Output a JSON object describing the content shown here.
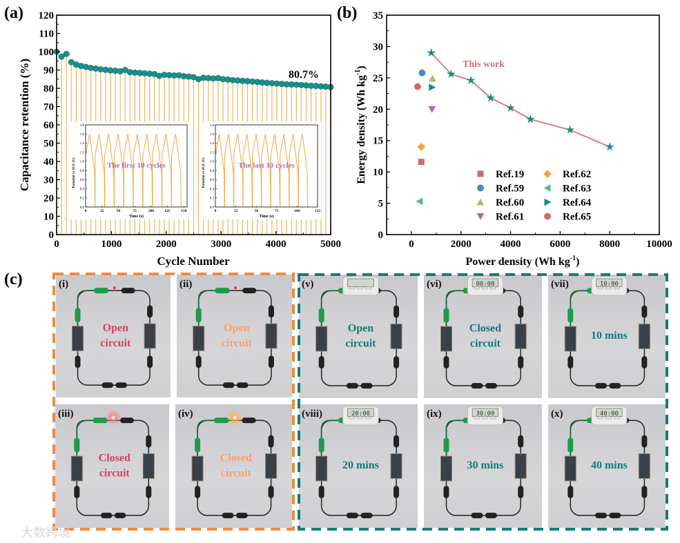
{
  "panels": {
    "a": "(a)",
    "b": "(b)",
    "c": "(c)"
  },
  "chart_data": [
    {
      "id": "a",
      "type": "scatter",
      "xlabel": "Cycle Number",
      "ylabel": "Capacitance retention (%)",
      "xlim": [
        0,
        5000
      ],
      "ylim": [
        0,
        120
      ],
      "xticks": [
        0,
        1000,
        2000,
        3000,
        4000,
        5000
      ],
      "yticks": [
        0,
        10,
        20,
        30,
        40,
        50,
        60,
        70,
        80,
        90,
        100,
        110,
        120
      ],
      "annotation": "80.7%",
      "marker_color": "#1a9089",
      "drop_line_color": "#f2b45a",
      "values": [
        100,
        97.3,
        98.8,
        94.3,
        93.0,
        92.2,
        91.7,
        91.2,
        90.8,
        90.4,
        90.1,
        89.8,
        89.6,
        89.3,
        90.0,
        88.8,
        88.6,
        88.4,
        88.2,
        88.0,
        87.8,
        86.8,
        87.4,
        87.2,
        87.0,
        87.1,
        86.6,
        86.4,
        86.1,
        85.0,
        85.8,
        85.6,
        85.4,
        85.6,
        85.0,
        84.8,
        84.5,
        84.3,
        84.1,
        83.9,
        83.7,
        83.5,
        83.2,
        83.0,
        82.8,
        82.6,
        82.4,
        82.2,
        82.1,
        82.0,
        81.8,
        81.6,
        81.4,
        81.3,
        81.1,
        80.9,
        80.7
      ],
      "insets": [
        {
          "label": "The first 10 cycles",
          "xlabel": "Time (s)",
          "ylabel": "Potential vs SCE (V)",
          "xlim": [
            0,
            155
          ],
          "ylim": [
            0,
            1.8
          ],
          "xticks": [
            0,
            25,
            50,
            75,
            100,
            125,
            150
          ],
          "yticks": [
            "0.0",
            "0.2",
            "0.4",
            "0.6",
            "0.8",
            "1.0",
            "1.2",
            "1.4",
            "1.6",
            "1.8"
          ],
          "cycles": 10,
          "period_s": 14.6,
          "vmax": 1.6
        },
        {
          "label": "The last 10 cycles",
          "xlabel": "Time (s)",
          "ylabel": "Potential vs SCE (V)",
          "xlim": [
            0,
            125
          ],
          "ylim": [
            0,
            1.8
          ],
          "xticks": [
            0,
            25,
            50,
            75,
            100,
            125
          ],
          "yticks": [
            "0.0",
            "0.2",
            "0.4",
            "0.6",
            "0.8",
            "1.0",
            "1.2",
            "1.4",
            "1.6",
            "1.8"
          ],
          "cycles": 10,
          "period_s": 11.3,
          "vmax": 1.6
        }
      ],
      "inset_line_color": "#f0a640",
      "inset_label_color": "#a870b8"
    },
    {
      "id": "b",
      "type": "scatter",
      "xlabel": "Power density (Wh kg",
      "xlabel_sup": "-1",
      "xlabel_end": ")",
      "ylabel": "Energy density (Wh kg",
      "ylabel_sup": "-1",
      "ylabel_end": ")",
      "xlim": [
        -1000,
        10000
      ],
      "ylim": [
        0,
        35
      ],
      "xticks": [
        0,
        2000,
        4000,
        6000,
        8000,
        10000
      ],
      "yticks": [
        0,
        5,
        10,
        15,
        20,
        25,
        30,
        35
      ],
      "series": [
        {
          "name": "This work",
          "marker": "star",
          "color": "#178c88",
          "line_color": "#e07c7c",
          "x": [
            800,
            1600,
            2400,
            3200,
            4000,
            4800,
            6400,
            8000
          ],
          "y": [
            29.0,
            25.6,
            24.6,
            21.8,
            20.2,
            18.4,
            16.7,
            14.0
          ]
        },
        {
          "name": "Ref.19",
          "marker": "square",
          "color": "#cd6b6b",
          "x": [
            400
          ],
          "y": [
            11.6
          ]
        },
        {
          "name": "Ref.59",
          "marker": "circle",
          "color": "#4a88c2",
          "x": [
            430
          ],
          "y": [
            25.8
          ]
        },
        {
          "name": "Ref.60",
          "marker": "triangle-up",
          "color": "#a6c060",
          "x": [
            850
          ],
          "y": [
            24.9
          ]
        },
        {
          "name": "Ref.61",
          "marker": "triangle-down",
          "color": "#a46ab8",
          "x": [
            830
          ],
          "y": [
            20.0
          ]
        },
        {
          "name": "Ref.62",
          "marker": "diamond",
          "color": "#f2a436",
          "x": [
            400
          ],
          "y": [
            14.0
          ]
        },
        {
          "name": "Ref.63",
          "marker": "triangle-left",
          "color": "#4ec080",
          "x": [
            330
          ],
          "y": [
            5.3
          ]
        },
        {
          "name": "Ref.64",
          "marker": "triangle-right",
          "color": "#0f9088",
          "x": [
            830
          ],
          "y": [
            23.5
          ]
        },
        {
          "name": "Ref.65",
          "marker": "hexagon",
          "color": "#cd6b6b",
          "x": [
            250
          ],
          "y": [
            23.6
          ]
        }
      ],
      "annotation": "This work",
      "annotation_color": "#d07070",
      "legend_placement": "bottom-center"
    }
  ],
  "photos": {
    "orange_color": "#f08a40",
    "teal_color": "#137c78",
    "items": [
      {
        "id": "(i)",
        "caption": [
          "Open",
          "circuit"
        ],
        "color": "#d8405c",
        "device": "led",
        "lit": false
      },
      {
        "id": "(ii)",
        "caption": [
          "Open",
          "circuit"
        ],
        "color": "#f5a070",
        "device": "led",
        "lit": false
      },
      {
        "id": "(iii)",
        "caption": [
          "Closed",
          "circuit"
        ],
        "color": "#d8405c",
        "device": "led",
        "lit": true,
        "glow": "#ff6a7a"
      },
      {
        "id": "(iv)",
        "caption": [
          "Closed",
          "circuit"
        ],
        "color": "#f5a070",
        "device": "led",
        "lit": true,
        "glow": "#ffb050"
      },
      {
        "id": "(v)",
        "caption": [
          "Open",
          "circuit"
        ],
        "color": "#147a78",
        "device": "timer",
        "display": ""
      },
      {
        "id": "(vi)",
        "caption": [
          "Closed",
          "circuit"
        ],
        "color": "#147a78",
        "device": "timer",
        "display": "00:08"
      },
      {
        "id": "(vii)",
        "caption": [
          "10 mins"
        ],
        "color": "#147a78",
        "device": "timer",
        "display": "10:00"
      },
      {
        "id": "(viii)",
        "caption": [
          "20 mins"
        ],
        "color": "#147a78",
        "device": "timer",
        "display": "20:00"
      },
      {
        "id": "(ix)",
        "caption": [
          "30 mins"
        ],
        "color": "#147a78",
        "device": "timer",
        "display": "30:00"
      },
      {
        "id": "(x)",
        "caption": [
          "40 mins"
        ],
        "color": "#147a78",
        "device": "timer",
        "display": "40:00"
      }
    ]
  },
  "watermark": "大数跨境"
}
